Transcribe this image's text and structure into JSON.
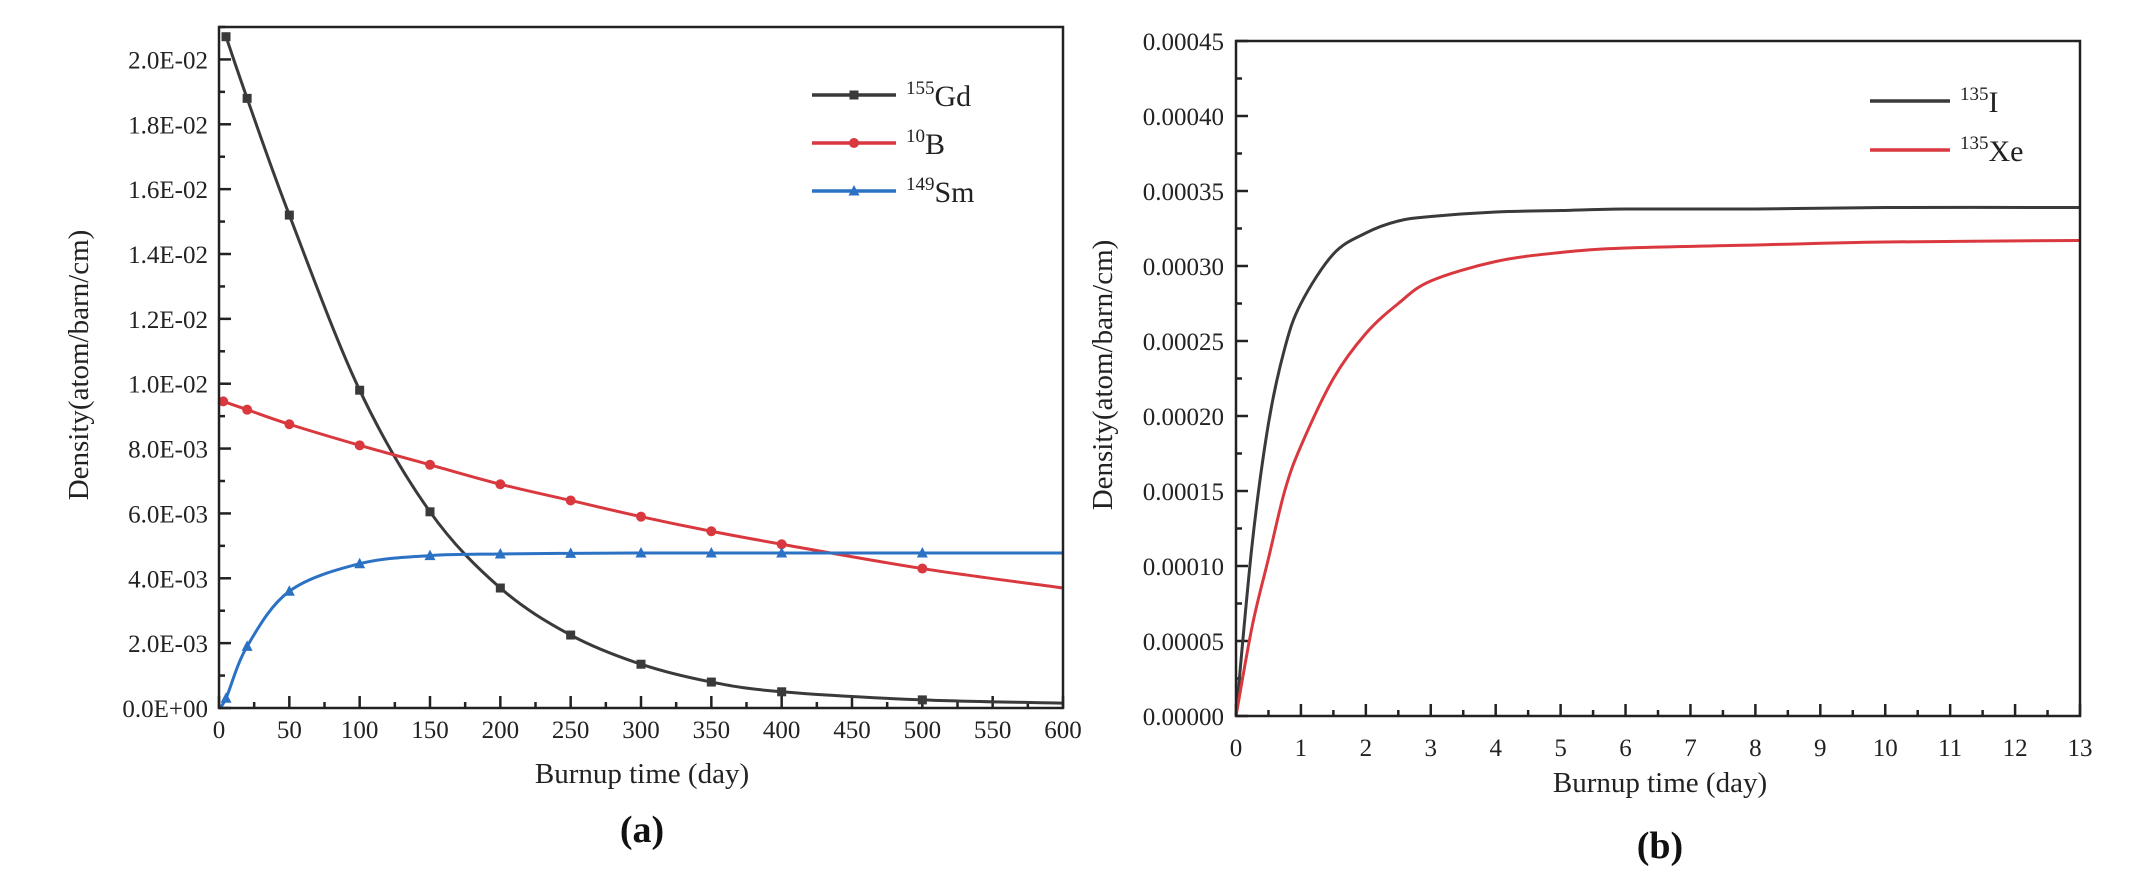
{
  "chart_data": [
    {
      "type": "line",
      "panel_label": "(a)",
      "xlabel": "Burnup time (day)",
      "ylabel": "Density(atom/barn/cm)",
      "xlim": [
        0,
        600
      ],
      "ylim": [
        0,
        0.021
      ],
      "xticks": [
        0,
        50,
        100,
        150,
        200,
        250,
        300,
        350,
        400,
        450,
        500,
        550,
        600
      ],
      "xtick_labels": [
        "0",
        "50",
        "100",
        "150",
        "200",
        "250",
        "300",
        "350",
        "400",
        "450",
        "500",
        "550",
        "600"
      ],
      "yticks": [
        0,
        0.002,
        0.004,
        0.006,
        0.008,
        0.01,
        0.012,
        0.014,
        0.016,
        0.018,
        0.02
      ],
      "ytick_labels": [
        "0.0E+00",
        "2.0E-03",
        "4.0E-03",
        "6.0E-03",
        "8.0E-03",
        "1.0E-02",
        "1.2E-02",
        "1.4E-02",
        "1.6E-02",
        "1.8E-02",
        "2.0E-02"
      ],
      "grid": false,
      "legend_position": "top-right",
      "series": [
        {
          "name_sup": "155",
          "name": "Gd",
          "color": "#3a3a3a",
          "marker": "square",
          "x": [
            5,
            20,
            50,
            100,
            150,
            200,
            250,
            300,
            350,
            400,
            500,
            600
          ],
          "y": [
            0.0207,
            0.0188,
            0.0152,
            0.0098,
            0.00605,
            0.0037,
            0.00225,
            0.00135,
            0.0008,
            0.0005,
            0.00025,
            0.00015
          ],
          "marker_x": [
            5,
            20,
            50,
            100,
            150,
            200,
            250,
            300,
            350,
            400,
            500
          ]
        },
        {
          "name_sup": "10",
          "name": "B",
          "color": "#d9393e",
          "marker": "circle",
          "x": [
            0,
            20,
            50,
            100,
            150,
            200,
            250,
            300,
            350,
            400,
            500,
            600
          ],
          "y": [
            0.0095,
            0.0092,
            0.00875,
            0.0081,
            0.0075,
            0.0069,
            0.0064,
            0.0059,
            0.00545,
            0.00505,
            0.0043,
            0.0037
          ],
          "marker_x": [
            3,
            20,
            50,
            100,
            150,
            200,
            250,
            300,
            350,
            400,
            500
          ]
        },
        {
          "name_sup": "149",
          "name": "Sm",
          "color": "#2b72c4",
          "marker": "triangle",
          "x": [
            0,
            5,
            20,
            50,
            100,
            150,
            200,
            250,
            300,
            350,
            400,
            500,
            600
          ],
          "y": [
            0,
            0.0003,
            0.0019,
            0.0036,
            0.00445,
            0.0047,
            0.00475,
            0.00477,
            0.00478,
            0.00478,
            0.00478,
            0.00478,
            0.00478
          ],
          "marker_x": [
            5,
            20,
            50,
            100,
            150,
            200,
            250,
            300,
            350,
            400,
            500
          ]
        }
      ]
    },
    {
      "type": "line",
      "panel_label": "(b)",
      "xlabel": "Burnup time (day)",
      "ylabel": "Density(atom/barn/cm)",
      "xlim": [
        0,
        13
      ],
      "ylim": [
        0,
        0.00045
      ],
      "xticks": [
        0,
        1,
        2,
        3,
        4,
        5,
        6,
        7,
        8,
        9,
        10,
        11,
        12,
        13
      ],
      "xtick_labels": [
        "0",
        "1",
        "2",
        "3",
        "4",
        "5",
        "6",
        "7",
        "8",
        "9",
        "10",
        "11",
        "12",
        "13"
      ],
      "yticks": [
        0,
        5e-05,
        0.0001,
        0.00015,
        0.0002,
        0.00025,
        0.0003,
        0.00035,
        0.0004,
        0.00045
      ],
      "ytick_labels": [
        "0.00000",
        "0.00005",
        "0.00010",
        "0.00015",
        "0.00020",
        "0.00025",
        "0.00030",
        "0.00035",
        "0.00040",
        "0.00045"
      ],
      "grid": false,
      "legend_position": "top-right",
      "series": [
        {
          "name_sup": "135",
          "name": "I",
          "color": "#3a3a3a",
          "x": [
            0,
            0.25,
            0.5,
            0.75,
            1,
            1.5,
            2,
            2.5,
            3,
            4,
            5,
            6,
            8,
            10,
            13
          ],
          "y": [
            0,
            0.000115,
            0.000195,
            0.000245,
            0.000275,
            0.000308,
            0.000322,
            0.00033,
            0.000333,
            0.000336,
            0.000337,
            0.000338,
            0.000338,
            0.000339,
            0.000339
          ]
        },
        {
          "name_sup": "135",
          "name": "Xe",
          "color": "#d9393e",
          "x": [
            0,
            0.25,
            0.5,
            0.75,
            1,
            1.5,
            2,
            2.5,
            3,
            4,
            5,
            6,
            8,
            10,
            13
          ],
          "y": [
            0,
            6e-05,
            0.000105,
            0.00015,
            0.00018,
            0.000225,
            0.000255,
            0.000275,
            0.00029,
            0.000303,
            0.000309,
            0.000312,
            0.000314,
            0.000316,
            0.000317
          ]
        }
      ]
    }
  ]
}
